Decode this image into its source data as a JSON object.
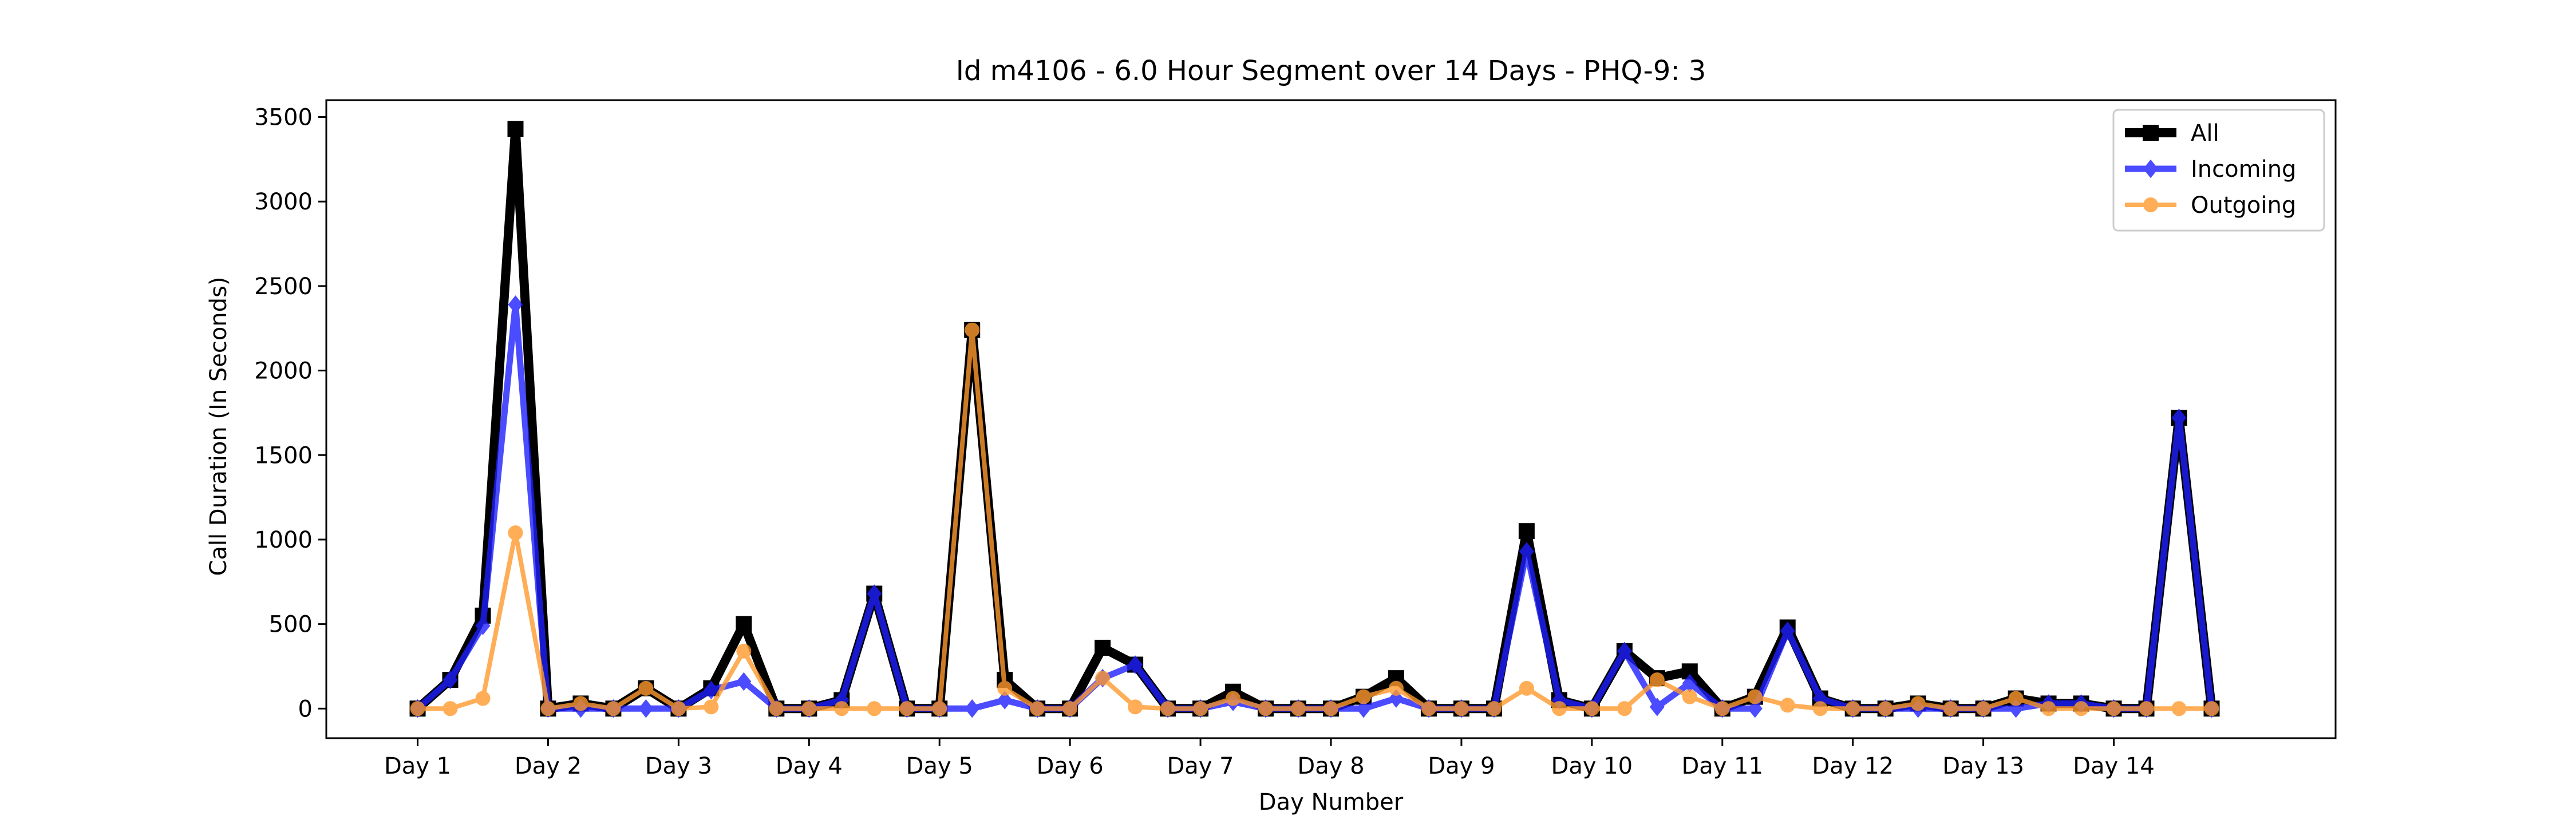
{
  "chart_data": {
    "type": "line",
    "title": "Id m4106 - 6.0 Hour Segment over 14 Days - PHQ-9: 3",
    "xlabel": "Day Number",
    "ylabel": "Call Duration (In Seconds)",
    "xlim": [
      -0.7,
      14.7
    ],
    "ylim": [
      -175,
      3600
    ],
    "yticks": [
      0,
      500,
      1000,
      1500,
      2000,
      2500,
      3000,
      3500
    ],
    "ytick_labels": [
      "0",
      "500",
      "1000",
      "1500",
      "2000",
      "2500",
      "3000",
      "3500"
    ],
    "xticks": [
      0,
      1,
      2,
      3,
      4,
      5,
      6,
      7,
      8,
      9,
      10,
      11,
      12,
      13
    ],
    "xtick_labels": [
      "Day 1",
      "Day 2",
      "Day 3",
      "Day 4",
      "Day 5",
      "Day 6",
      "Day 7",
      "Day 8",
      "Day 9",
      "Day 10",
      "Day 11",
      "Day 12",
      "Day 13",
      "Day 14"
    ],
    "x": [
      0,
      0.25,
      0.5,
      0.75,
      1,
      1.25,
      1.5,
      1.75,
      2,
      2.25,
      2.5,
      2.75,
      3,
      3.25,
      3.5,
      3.75,
      4,
      4.25,
      4.5,
      4.75,
      5,
      5.25,
      5.5,
      5.75,
      6,
      6.25,
      6.5,
      6.75,
      7,
      7.25,
      7.5,
      7.75,
      8,
      8.25,
      8.5,
      8.75,
      9,
      9.25,
      9.5,
      9.75,
      10,
      10.25,
      10.5,
      10.75,
      11,
      11.25,
      11.5,
      11.75,
      12,
      12.25,
      12.5,
      12.75,
      13,
      13.25,
      13.5,
      13.75
    ],
    "legend_position": "top-right",
    "grid": false,
    "series": [
      {
        "name": "All",
        "color": "#000000",
        "marker": "square",
        "values": [
          0,
          170,
          550,
          3430,
          0,
          30,
          0,
          120,
          0,
          120,
          500,
          0,
          0,
          50,
          680,
          0,
          0,
          2240,
          170,
          0,
          0,
          360,
          260,
          0,
          0,
          100,
          0,
          0,
          0,
          70,
          180,
          0,
          0,
          0,
          1050,
          50,
          0,
          340,
          180,
          220,
          0,
          70,
          480,
          60,
          0,
          0,
          30,
          0,
          0,
          60,
          30,
          30,
          0,
          0,
          1720,
          0
        ]
      },
      {
        "name": "Incoming",
        "color": "#1f1fff",
        "marker": "diamond",
        "values": [
          0,
          170,
          490,
          2390,
          0,
          0,
          0,
          0,
          0,
          110,
          160,
          0,
          0,
          50,
          680,
          0,
          0,
          0,
          50,
          0,
          0,
          180,
          260,
          0,
          0,
          40,
          0,
          0,
          0,
          0,
          60,
          0,
          0,
          0,
          930,
          50,
          0,
          340,
          10,
          150,
          0,
          0,
          460,
          60,
          0,
          0,
          0,
          0,
          0,
          0,
          30,
          30,
          0,
          0,
          1720,
          0
        ]
      },
      {
        "name": "Outgoing",
        "color": "#ff9a2e",
        "marker": "circle",
        "values": [
          0,
          0,
          60,
          1040,
          0,
          30,
          0,
          120,
          0,
          10,
          340,
          0,
          0,
          0,
          0,
          0,
          0,
          2240,
          120,
          0,
          0,
          180,
          10,
          0,
          0,
          60,
          0,
          0,
          0,
          70,
          120,
          0,
          0,
          0,
          120,
          0,
          0,
          0,
          170,
          70,
          0,
          70,
          20,
          0,
          0,
          0,
          30,
          0,
          0,
          60,
          0,
          0,
          0,
          0,
          0,
          0
        ]
      }
    ]
  }
}
